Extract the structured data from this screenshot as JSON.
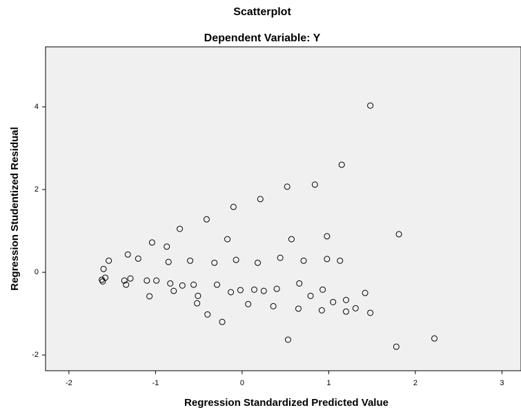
{
  "chart_data": {
    "type": "scatter",
    "title": "Scatterplot",
    "subtitle": "Dependent Variable: Y",
    "x_label": "Regression Standardized Predicted Value",
    "y_label": "Regression Studentized Residual",
    "x": [
      1.48,
      1.15,
      0.52,
      0.84,
      0.21,
      -0.1,
      -0.41,
      -0.72,
      1.81,
      0.98,
      -0.17,
      0.57,
      -1.04,
      -0.87,
      -1.32,
      -1.2,
      -1.54,
      -0.6,
      -0.07,
      0.44,
      0.71,
      0.98,
      1.13,
      -0.85,
      -0.32,
      0.18,
      -1.6,
      -1.58,
      -1.62,
      -1.61,
      -1.36,
      -1.29,
      -1.34,
      -1.1,
      -0.99,
      -0.83,
      -0.69,
      -0.56,
      -0.79,
      -1.07,
      -0.51,
      -0.52,
      -0.29,
      -0.13,
      -0.02,
      0.14,
      0.25,
      0.4,
      0.66,
      0.93,
      0.79,
      1.05,
      1.2,
      1.42,
      0.07,
      0.36,
      0.65,
      0.92,
      1.2,
      1.31,
      1.48,
      -0.4,
      -0.23,
      0.53,
      1.78,
      2.22
    ],
    "values": [
      4.03,
      2.6,
      2.07,
      2.12,
      1.77,
      1.58,
      1.28,
      1.05,
      0.92,
      0.87,
      0.8,
      0.8,
      0.72,
      0.62,
      0.43,
      0.33,
      0.28,
      0.28,
      0.3,
      0.35,
      0.28,
      0.32,
      0.28,
      0.25,
      0.23,
      0.23,
      0.08,
      -0.13,
      -0.18,
      -0.22,
      -0.2,
      -0.15,
      -0.3,
      -0.2,
      -0.2,
      -0.27,
      -0.32,
      -0.3,
      -0.45,
      -0.58,
      -0.57,
      -0.75,
      -0.3,
      -0.48,
      -0.43,
      -0.42,
      -0.45,
      -0.4,
      -0.27,
      -0.42,
      -0.57,
      -0.72,
      -0.67,
      -0.5,
      -0.77,
      -0.82,
      -0.88,
      -0.92,
      -0.95,
      -0.87,
      -0.98,
      -1.02,
      -1.2,
      -1.63,
      -1.8,
      -1.6
    ],
    "color": "#000000",
    "xlim": [
      -2.27,
      3.22
    ],
    "xticks": [
      -2,
      -1,
      0,
      1,
      2,
      3
    ],
    "ylim": [
      -2.38,
      5.45
    ],
    "yticks": [
      -2,
      0,
      2,
      4
    ]
  }
}
